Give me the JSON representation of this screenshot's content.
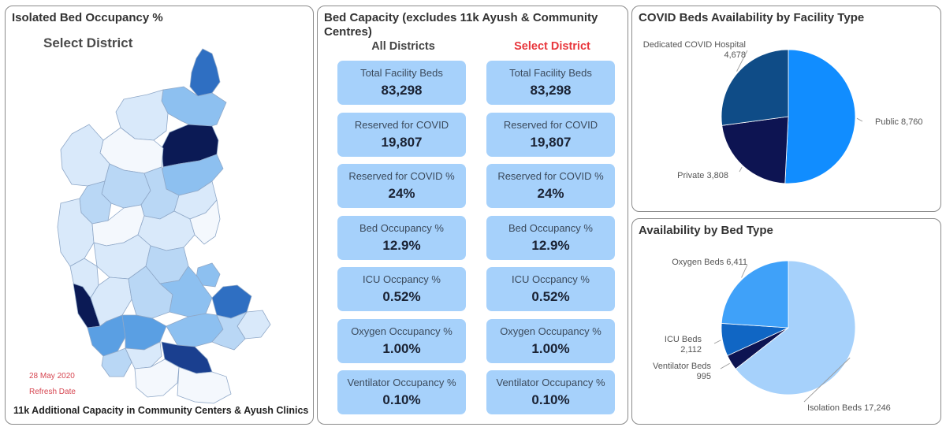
{
  "map_panel": {
    "title": "Isolated Bed Occupancy %",
    "select_label": "Select District",
    "refresh_date": "28 May 2020",
    "refresh_label": "Refresh Date",
    "footer": "11k Additional Capacity in Community Centers & Ayush Clinics"
  },
  "capacity_panel": {
    "title_line1": "Bed Capacity (excludes 11k Ayush & Community",
    "title_line2": "Centres)",
    "col_all": "All Districts",
    "col_select": "Select District",
    "cards": [
      {
        "label": "Total Facility Beds",
        "all": "83,298",
        "select": "83,298"
      },
      {
        "label": "Reserved for COVID",
        "all": "19,807",
        "select": "19,807"
      },
      {
        "label": "Reserved for COVID %",
        "all": "24%",
        "select": "24%"
      },
      {
        "label": "Bed Occupancy %",
        "all": "12.9%",
        "select": "12.9%"
      },
      {
        "label": "ICU Occpancy %",
        "all": "0.52%",
        "select": "0.52%"
      },
      {
        "label": "Oxygen Occupancy %",
        "all": "1.00%",
        "select": "1.00%"
      },
      {
        "label": "Ventilator Occupancy %",
        "all": "0.10%",
        "select": "0.10%"
      }
    ]
  },
  "colors": {
    "map_palette": [
      "#f4f8fd",
      "#d9e9fa",
      "#b9d7f5",
      "#8dc0f0",
      "#5a9fe3",
      "#2f6fc2",
      "#1a3f8f",
      "#0b1a55"
    ],
    "card_bg": "#a6d1fb",
    "select_red": "#e8363c"
  },
  "chart_data": [
    {
      "type": "pie",
      "title": "COVID Beds Availability by Facility Type",
      "slices": [
        {
          "label": "Public",
          "value": 8760,
          "display": "Public 8,760",
          "color": "#118dff"
        },
        {
          "label": "Private",
          "value": 3808,
          "display": "Private 3,808",
          "color": "#0d1452"
        },
        {
          "label": "Dedicated COVID Hospital",
          "value": 4678,
          "display": "4,678",
          "color": "#0f4c87"
        }
      ]
    },
    {
      "type": "pie",
      "title": "Availability by Bed Type",
      "slices": [
        {
          "label": "Isolation Beds",
          "value": 17246,
          "display": "Isolation Beds 17,246",
          "color": "#a6d1fb"
        },
        {
          "label": "Ventilator Beds",
          "value": 995,
          "display": "995",
          "color": "#0d1452"
        },
        {
          "label": "ICU Beds",
          "value": 2112,
          "display": "2,112",
          "color": "#1066c4"
        },
        {
          "label": "Oxygen Beds",
          "value": 6411,
          "display": "Oxygen Beds 6,411",
          "color": "#3fa1f9"
        }
      ]
    }
  ]
}
